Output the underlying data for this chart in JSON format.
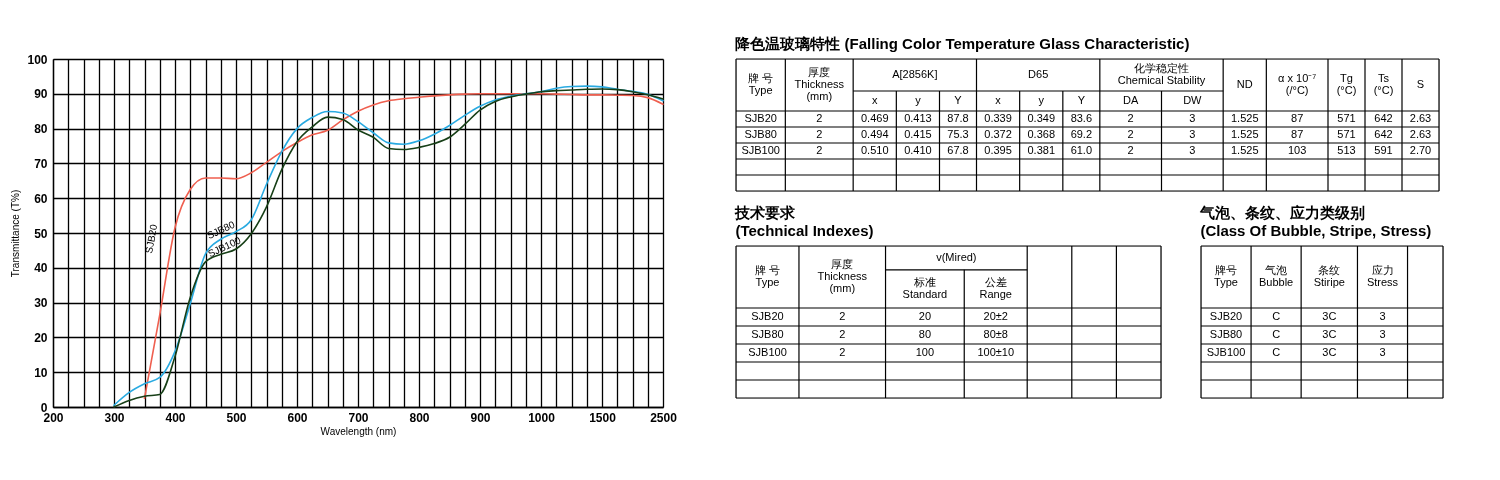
{
  "chart_data": [
    {
      "type": "line",
      "xlabel": "Wavelength (nm)",
      "ylabel": "Transmittance (T%)",
      "categories": [
        "200",
        null,
        null,
        null,
        "300",
        null,
        null,
        null,
        "400",
        null,
        null,
        null,
        "500",
        null,
        null,
        null,
        "600",
        null,
        null,
        null,
        "700",
        null,
        null,
        null,
        "800",
        null,
        null,
        null,
        "900",
        null,
        null,
        null,
        "1000",
        null,
        null,
        null,
        "1500",
        null,
        null,
        null,
        "2500"
      ],
      "ylim": [
        0,
        100
      ],
      "yticks": [
        0,
        10,
        20,
        30,
        40,
        50,
        60,
        70,
        80,
        90,
        100
      ],
      "grid": true,
      "series": [
        {
          "name": "SJB20",
          "color": "#ef5f4f",
          "values": [
            null,
            null,
            null,
            null,
            null,
            null,
            2.5,
            26.5,
            51.5,
            62.5,
            65.8,
            65.8,
            65.6,
            67.3,
            70.3,
            73.4,
            76,
            78.2,
            79.5,
            82.5,
            85,
            86.8,
            88,
            88.6,
            89,
            89.4,
            89.7,
            89.9,
            90,
            90,
            90,
            90,
            90,
            89.9,
            89.8,
            89.7,
            89.7,
            89.6,
            89.5,
            88.9,
            87
          ]
        },
        {
          "name": "SJB80",
          "color": "#29aae1",
          "values": [
            null,
            null,
            null,
            null,
            0.5,
            4.2,
            6.7,
            8.5,
            16,
            29.7,
            44,
            48.2,
            50.4,
            53.8,
            64,
            73.4,
            80,
            83.2,
            84.9,
            84.5,
            82,
            78.8,
            75.9,
            75.5,
            76.5,
            78.4,
            80.9,
            83.8,
            86.4,
            88.2,
            89.3,
            90,
            90.6,
            91.6,
            92.1,
            92.2,
            92,
            91.3,
            90.7,
            89.9,
            88
          ]
        },
        {
          "name": "SJB100",
          "color": "#173f17",
          "values": [
            null,
            null,
            null,
            null,
            0,
            1.9,
            3.1,
            3.6,
            14.5,
            31.5,
            41.7,
            43.9,
            45.4,
            49.8,
            57.5,
            68.2,
            76.2,
            80.5,
            83.3,
            82.6,
            79.6,
            77.5,
            74.3,
            74,
            74.6,
            75.7,
            77.5,
            81.2,
            85.3,
            87.8,
            89.1,
            89.9,
            90.6,
            90.9,
            91.1,
            91.3,
            91.4,
            91.2,
            90.6,
            89.7,
            88.5
          ]
        }
      ]
    },
    {
      "type": "other",
      "title": "降色温玻璃特性 (Falling Color Temperature Glass Characteristic)",
      "cell_labels": [
        [
          "牌 号\nType",
          "厚度\nThickness\n(mm)",
          "A[2856K]",
          null,
          null,
          "D65",
          null,
          null,
          "化学稳定性\nChemical Stability",
          null,
          "ND",
          "α x 10⁻⁷\n(/°C)",
          "Tg\n(°C)",
          "Ts\n(°C)",
          "S"
        ],
        [
          null,
          null,
          "x",
          "y",
          "Y",
          "x",
          "y",
          "Y",
          "DA",
          "DW",
          null,
          null,
          null,
          null,
          null
        ],
        [
          "SJB20",
          "2",
          "0.469",
          "0.413",
          "87.8",
          "0.339",
          "0.349",
          "83.6",
          "2",
          "3",
          "1.525",
          "87",
          "571",
          "642",
          "2.63"
        ],
        [
          "SJB80",
          "2",
          "0.494",
          "0.415",
          "75.3",
          "0.372",
          "0.368",
          "69.2",
          "2",
          "3",
          "1.525",
          "87",
          "571",
          "642",
          "2.63"
        ],
        [
          "SJB100",
          "2",
          "0.510",
          "0.410",
          "67.8",
          "0.395",
          "0.381",
          "61.0",
          "2",
          "3",
          "1.525",
          "103",
          "513",
          "591",
          "2.70"
        ],
        [
          null,
          null,
          null,
          null,
          null,
          null,
          null,
          null,
          null,
          null,
          null,
          null,
          null,
          null,
          null
        ],
        [
          null,
          null,
          null,
          null,
          null,
          null,
          null,
          null,
          null,
          null,
          null,
          null,
          null,
          null,
          null
        ]
      ]
    },
    {
      "type": "other",
      "title": "技术要求\n(Technical Indexes)",
      "cell_labels": [
        [
          "牌 号\nType",
          "厚度\nThickness\n(mm)",
          "v(Mired)",
          null,
          null,
          null,
          null
        ],
        [
          null,
          null,
          "标准\nStandard",
          "公差\nRange",
          null,
          null,
          null
        ],
        [
          "SJB20",
          "2",
          "20",
          "20±2",
          null,
          null,
          null
        ],
        [
          "SJB80",
          "2",
          "80",
          "80±8",
          null,
          null,
          null
        ],
        [
          "SJB100",
          "2",
          "100",
          "100±10",
          null,
          null,
          null
        ],
        [
          null,
          null,
          null,
          null,
          null,
          null,
          null
        ],
        [
          null,
          null,
          null,
          null,
          null,
          null,
          null
        ]
      ]
    },
    {
      "type": "other",
      "title": "气泡、条纹、应力类级别\n(Class Of Bubble, Stripe, Stress)",
      "cell_labels": [
        [
          "牌号\nType",
          "气泡\nBubble",
          "条纹\nStiripe",
          "应力\nStress",
          null
        ],
        [
          "SJB20",
          "C",
          "3C",
          "3",
          null
        ],
        [
          "SJB80",
          "C",
          "3C",
          "3",
          null
        ],
        [
          "SJB100",
          "C",
          "3C",
          "3",
          null
        ],
        [
          null,
          null,
          null,
          null,
          null
        ],
        [
          null,
          null,
          null,
          null,
          null
        ]
      ]
    }
  ]
}
